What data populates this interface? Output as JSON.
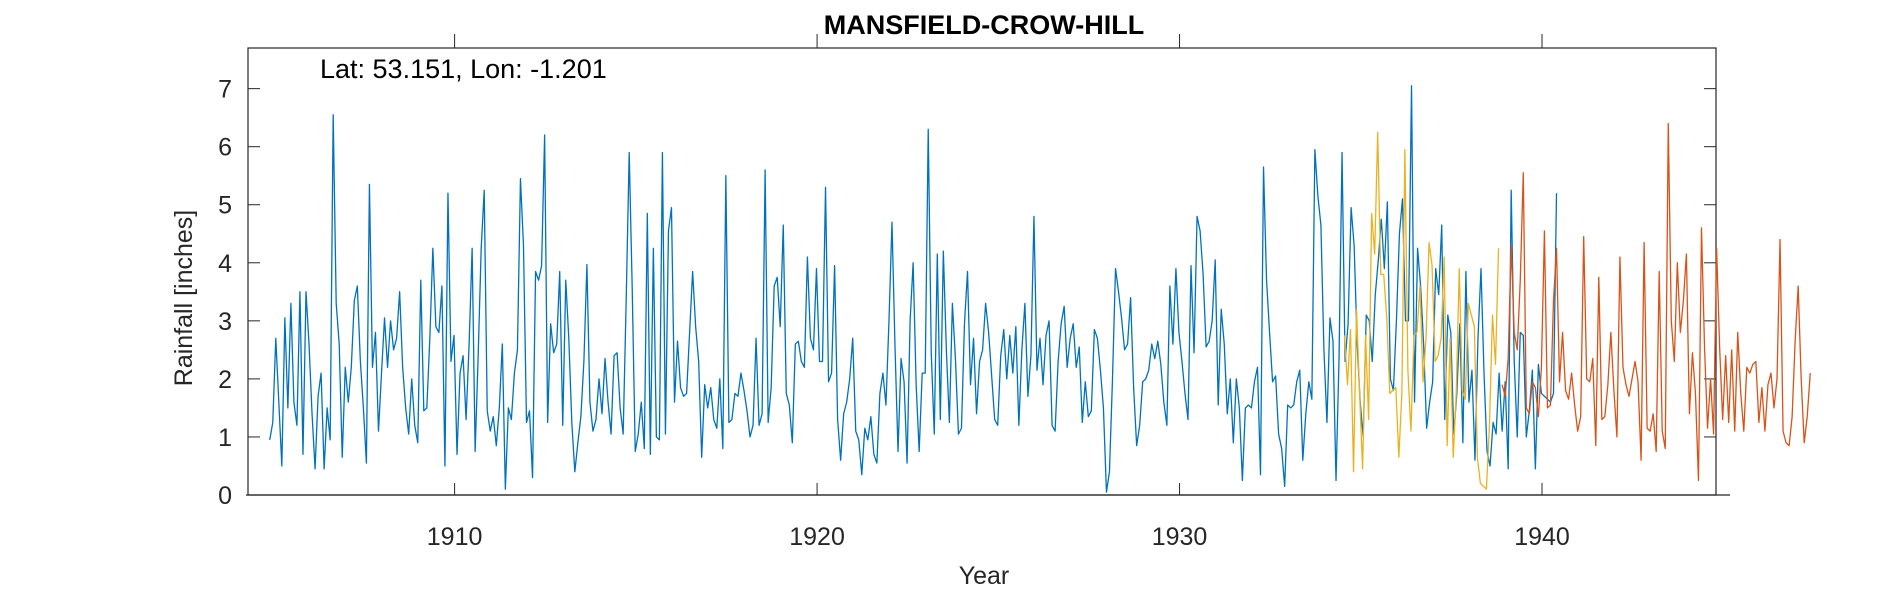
{
  "chart_data": {
    "type": "line",
    "title": "MANSFIELD-CROW-HILL",
    "annotation": "Lat: 53.151, Lon: -1.201",
    "xlabel": "Year",
    "ylabel": "Rainfall [inches]",
    "xlim": [
      1904.3,
      1944.8
    ],
    "ylim": [
      0,
      7.7
    ],
    "xticks": [
      "1910",
      "1920",
      "1930",
      "1940"
    ],
    "yticks": [
      "0",
      "1",
      "2",
      "3",
      "4",
      "5",
      "6",
      "7"
    ],
    "grid": false,
    "series": [
      {
        "color": "#0072bd",
        "start": 1904.9,
        "step": 0.0833333,
        "values": [
          0.95,
          1.25,
          2.7,
          1.6,
          0.5,
          3.05,
          1.5,
          3.3,
          1.6,
          1.2,
          3.5,
          0.7,
          3.5,
          2.6,
          1.4,
          0.45,
          1.7,
          2.1,
          0.45,
          1.5,
          0.95,
          6.55,
          3.3,
          2.6,
          0.65,
          2.2,
          1.6,
          2.2,
          3.35,
          3.6,
          2.3,
          1.5,
          0.55,
          5.35,
          2.2,
          2.8,
          1.1,
          2.1,
          3.05,
          2.2,
          3.0,
          2.5,
          2.7,
          3.5,
          2.2,
          1.5,
          1.05,
          2.0,
          1.2,
          0.9,
          3.7,
          1.45,
          1.5,
          2.7,
          4.25,
          2.9,
          2.8,
          3.6,
          0.5,
          5.2,
          2.3,
          2.75,
          0.7,
          2.1,
          2.4,
          1.3,
          2.6,
          4.25,
          0.75,
          2.4,
          4.25,
          5.25,
          1.45,
          1.1,
          1.35,
          0.85,
          1.5,
          2.6,
          0.1,
          1.5,
          1.3,
          2.1,
          2.5,
          5.45,
          4.3,
          1.25,
          1.45,
          0.3,
          3.85,
          3.7,
          3.95,
          6.2,
          1.25,
          2.95,
          2.45,
          2.6,
          3.85,
          1.2,
          3.7,
          2.7,
          1.25,
          0.4,
          0.9,
          1.35,
          2.3,
          3.97,
          1.6,
          1.1,
          1.3,
          2.0,
          1.4,
          2.35,
          1.6,
          1.05,
          2.4,
          2.45,
          1.5,
          1.05,
          3.35,
          5.9,
          3.55,
          0.75,
          1.05,
          1.6,
          0.8,
          4.85,
          0.7,
          4.25,
          1.0,
          0.95,
          5.9,
          1.05,
          4.55,
          4.95,
          1.6,
          2.65,
          1.85,
          1.7,
          1.75,
          2.8,
          3.85,
          2.9,
          2.3,
          0.65,
          1.9,
          1.5,
          1.85,
          1.3,
          1.15,
          2.0,
          0.8,
          5.5,
          1.25,
          1.3,
          1.75,
          1.7,
          2.1,
          1.8,
          1.45,
          1.0,
          1.2,
          2.7,
          1.2,
          1.4,
          5.6,
          1.25,
          1.85,
          3.6,
          3.75,
          2.9,
          4.65,
          1.75,
          1.55,
          0.9,
          2.6,
          2.65,
          2.3,
          2.2,
          4.1,
          2.7,
          2.5,
          3.9,
          2.3,
          2.3,
          5.3,
          1.95,
          2.1,
          3.95,
          1.3,
          0.6,
          1.4,
          1.6,
          2.0,
          2.7,
          1.1,
          0.95,
          0.35,
          1.15,
          0.95,
          1.35,
          0.7,
          0.55,
          1.75,
          2.1,
          1.55,
          3.0,
          4.7,
          2.55,
          0.75,
          2.35,
          1.95,
          0.55,
          3.0,
          4.0,
          1.9,
          0.75,
          2.1,
          2.1,
          6.3,
          2.45,
          1.05,
          4.15,
          1.3,
          4.2,
          2.5,
          1.25,
          3.3,
          2.35,
          1.05,
          1.15,
          2.95,
          3.85,
          1.9,
          2.7,
          1.4,
          2.3,
          2.5,
          3.3,
          2.8,
          2.05,
          1.3,
          1.2,
          2.4,
          2.85,
          2.0,
          2.75,
          2.1,
          2.9,
          1.2,
          2.5,
          3.3,
          1.7,
          2.4,
          4.8,
          2.15,
          2.7,
          1.9,
          2.75,
          3.0,
          1.2,
          1.1,
          2.3,
          2.95,
          3.25,
          2.2,
          2.7,
          2.95,
          2.2,
          2.55,
          1.25,
          1.95,
          1.35,
          1.45,
          2.85,
          2.7,
          2.15,
          1.5,
          0.05,
          0.4,
          2.0,
          3.9,
          3.5,
          3.05,
          2.5,
          2.6,
          3.4,
          1.85,
          0.85,
          1.2,
          1.95,
          2.0,
          2.15,
          2.6,
          2.35,
          2.65,
          2.25,
          1.6,
          1.2,
          3.6,
          2.6,
          3.9,
          2.8,
          2.3,
          1.75,
          1.3,
          3.95,
          2.45,
          4.8,
          4.55,
          3.8,
          2.55,
          2.65,
          3.0,
          4.05,
          1.55,
          3.2,
          2.6,
          1.4,
          2.0,
          0.9,
          2.0,
          1.5,
          0.25,
          1.5,
          1.55,
          1.5,
          1.95,
          2.2,
          0.35,
          5.65,
          3.7,
          2.8,
          1.95,
          2.05,
          1.05,
          0.8,
          0.15,
          1.55,
          1.5,
          1.55,
          1.95,
          2.15,
          0.6,
          1.4,
          1.95,
          1.65,
          5.95,
          5.15,
          4.65,
          2.5,
          1.25,
          3.05,
          2.65,
          0.25,
          2.35,
          5.9,
          2.3,
          2.95,
          4.95,
          4.3,
          2.6,
          1.6,
          1.0,
          3.1,
          3.0,
          2.3,
          3.45,
          4.05,
          4.75,
          3.9,
          5.05,
          2.0,
          1.8,
          3.0,
          4.5,
          5.1,
          3.0,
          3.0,
          7.05,
          1.6,
          4.25,
          3.6,
          2.6,
          1.15,
          1.6,
          1.95,
          3.9,
          3.45,
          4.65,
          1.3,
          3.1,
          2.8,
          1.05,
          1.75,
          2.95,
          0.9,
          3.85,
          1.6,
          2.15,
          0.6,
          2.7,
          3.9,
          2.1,
          0.75,
          0.5,
          1.25,
          1.05,
          2.1,
          1.1,
          1.95,
          0.45,
          5.25,
          2.3,
          1.0,
          2.8,
          2.75,
          1.0,
          1.45,
          2.15,
          0.45,
          2.25,
          1.75,
          1.7,
          1.65,
          1.6,
          1.75,
          5.2
        ]
      },
      {
        "color": "#edb120",
        "start": 1934.55,
        "step": 0.0833333,
        "values": [
          2.75,
          1.9,
          2.85,
          0.4,
          3.2,
          1.75,
          0.45,
          2.75,
          1.3,
          4.85,
          4.15,
          6.25,
          3.8,
          3.8,
          3.05,
          1.75,
          1.8,
          1.85,
          0.65,
          1.75,
          5.95,
          2.15,
          1.1,
          2.75,
          2.8,
          3.6,
          1.95,
          2.7,
          4.35,
          3.95,
          2.3,
          2.4,
          2.7,
          4.1,
          0.85,
          2.7,
          0.65,
          1.75,
          3.9,
          1.8,
          1.65,
          3.3,
          3.1,
          2.9,
          0.65,
          0.2,
          0.15,
          0.1,
          1.2,
          3.1,
          2.25,
          4.25
        ]
      },
      {
        "color": "#d95319",
        "start": 1938.9,
        "step": 0.0833333,
        "values": [
          1.9,
          1.7,
          2.35,
          4.3,
          2.8,
          2.5,
          3.7,
          5.55,
          1.5,
          1.4,
          1.95,
          1.85,
          1.35,
          2.2,
          4.55,
          1.5,
          1.55,
          3.35,
          4.25,
          1.95,
          2.8,
          1.8,
          1.65,
          2.1,
          1.55,
          1.1,
          1.35,
          4.45,
          2.0,
          1.95,
          2.35,
          0.85,
          3.75,
          1.3,
          1.35,
          1.9,
          2.8,
          1.8,
          1.0,
          4.1,
          2.2,
          1.9,
          1.7,
          2.0,
          2.3,
          1.95,
          0.6,
          4.35,
          1.15,
          1.1,
          1.4,
          0.75,
          3.85,
          1.1,
          0.8,
          6.4,
          3.0,
          2.3,
          4.0,
          2.8,
          3.35,
          4.15,
          1.4,
          2.45,
          1.75,
          0.25,
          4.6,
          2.55,
          1.15,
          2.0,
          1.05,
          4.25,
          2.55,
          1.3,
          2.4,
          1.25,
          2.5,
          1.1,
          2.8,
          1.75,
          1.1,
          2.2,
          2.1,
          2.25,
          2.3,
          1.25,
          1.85,
          1.1,
          1.9,
          2.1,
          1.5,
          2.0,
          4.4,
          1.1,
          0.9,
          0.85,
          1.35,
          2.65,
          3.6,
          2.0,
          0.9,
          1.35,
          2.1
        ]
      }
    ]
  }
}
